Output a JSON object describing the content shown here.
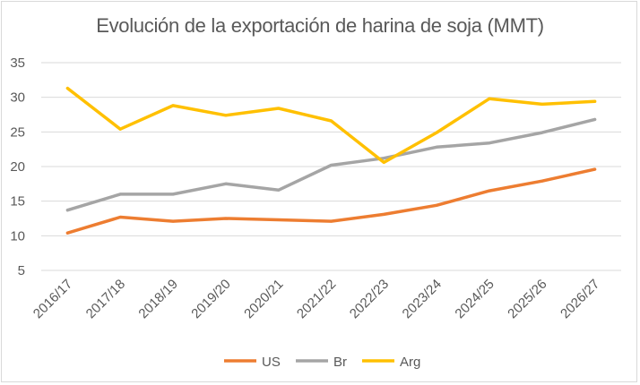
{
  "chart_data": {
    "type": "line",
    "title": "Evolución de la exportación de harina de soja (MMT)",
    "categories": [
      "2016/17",
      "2017/18",
      "2018/19",
      "2019/20",
      "2020/21",
      "2021/22",
      "2022/23",
      "2023/24",
      "2024/25",
      "2025/26",
      "2026/27"
    ],
    "ylim": [
      5,
      35
    ],
    "yticks": [
      5,
      10,
      15,
      20,
      25,
      30,
      35
    ],
    "grid": true,
    "legend_position": "bottom",
    "series": [
      {
        "name": "US",
        "color": "#ED7D31",
        "values": [
          10.4,
          12.7,
          12.1,
          12.5,
          12.3,
          12.1,
          13.1,
          14.4,
          16.5,
          17.9,
          19.6
        ]
      },
      {
        "name": "Br",
        "color": "#A5A5A5",
        "values": [
          13.7,
          16.0,
          16.0,
          17.5,
          16.6,
          20.2,
          21.2,
          22.8,
          23.4,
          24.9,
          26.8
        ]
      },
      {
        "name": "Arg",
        "color": "#FFC000",
        "values": [
          31.3,
          25.4,
          28.8,
          27.4,
          28.4,
          26.6,
          20.6,
          24.9,
          29.8,
          29.0,
          29.4
        ]
      }
    ]
  }
}
